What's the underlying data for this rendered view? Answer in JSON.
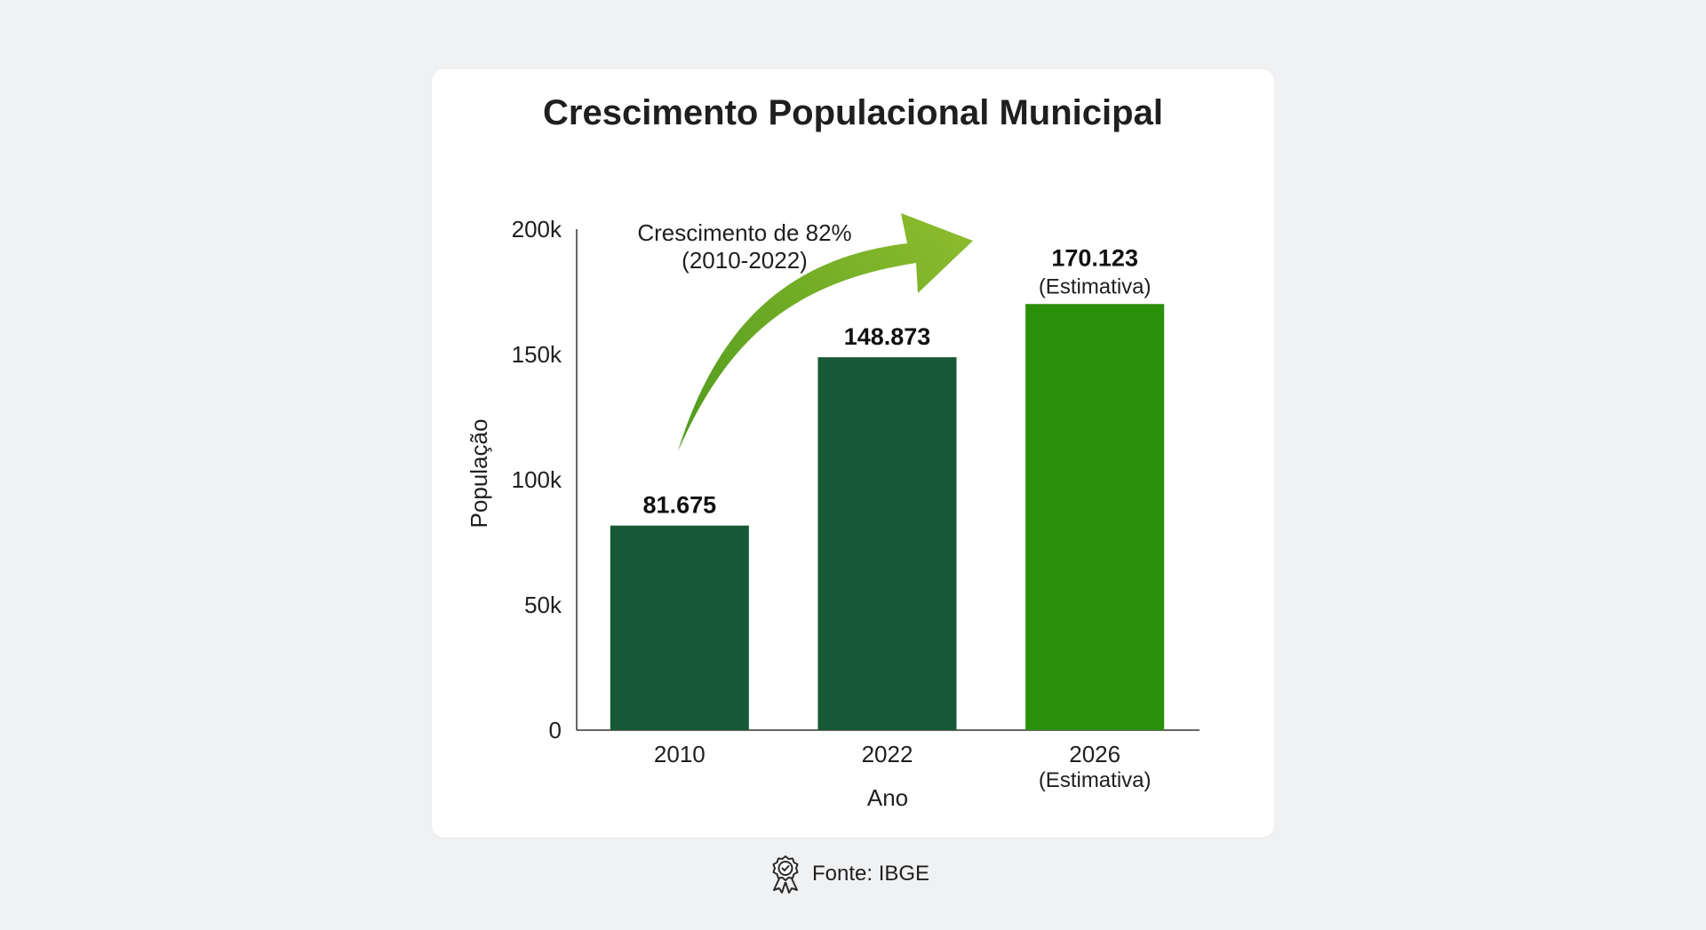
{
  "chart_data": {
    "type": "bar",
    "title": "Crescimento Populacional Municipal",
    "xlabel": "Ano",
    "ylabel": "População",
    "ylim": [
      0,
      200000
    ],
    "yticks": [
      {
        "value": 0,
        "label": "0"
      },
      {
        "value": 50000,
        "label": "50k"
      },
      {
        "value": 100000,
        "label": "100k"
      },
      {
        "value": 150000,
        "label": "150k"
      },
      {
        "value": 200000,
        "label": "200k"
      }
    ],
    "categories": [
      {
        "label": "2010",
        "sublabel": ""
      },
      {
        "label": "2022",
        "sublabel": ""
      },
      {
        "label": "2026",
        "sublabel": "(Estimativa)"
      }
    ],
    "values": [
      81675,
      148873,
      170123
    ],
    "value_labels": [
      "81.675",
      "148.873",
      "170.123"
    ],
    "value_sublabels": [
      "",
      "",
      "(Estimativa)"
    ],
    "colors": [
      "#175936",
      "#175936",
      "#2a8f0b"
    ],
    "annotation": {
      "line1": "Crescimento de 82%",
      "line2": "(2010-2022)"
    },
    "arrow_colors": [
      "#4f9a1e",
      "#8fbd2e"
    ],
    "grid": false
  },
  "source": {
    "label": "Fonte: IBGE",
    "icon": "award-badge-icon"
  }
}
